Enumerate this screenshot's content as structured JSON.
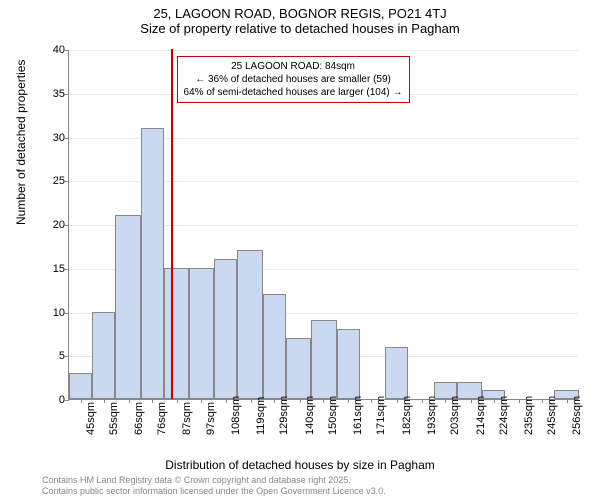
{
  "title_main": "25, LAGOON ROAD, BOGNOR REGIS, PO21 4TJ",
  "title_sub": "Size of property relative to detached houses in Pagham",
  "y_label": "Number of detached properties",
  "x_label": "Distribution of detached houses by size in Pagham",
  "chart": {
    "type": "histogram",
    "ylim": [
      0,
      40
    ],
    "ytick_step": 5,
    "bar_color": "#cbd9f0",
    "bar_border_color": "#888888",
    "grid_color": "#e8e8e8",
    "background_color": "#ffffff",
    "reference_line_color": "#cc0000",
    "reference_x": 84,
    "x_min": 40,
    "x_max": 261,
    "x_ticks": [
      45,
      55,
      66,
      76,
      87,
      97,
      108,
      119,
      129,
      140,
      150,
      161,
      171,
      182,
      193,
      203,
      214,
      224,
      235,
      245,
      256
    ],
    "bars": [
      {
        "x_start": 40,
        "x_end": 50,
        "value": 3
      },
      {
        "x_start": 50,
        "x_end": 60,
        "value": 10
      },
      {
        "x_start": 60,
        "x_end": 71,
        "value": 21
      },
      {
        "x_start": 71,
        "x_end": 81,
        "value": 31
      },
      {
        "x_start": 81,
        "x_end": 92,
        "value": 15
      },
      {
        "x_start": 92,
        "x_end": 103,
        "value": 15
      },
      {
        "x_start": 103,
        "x_end": 113,
        "value": 16
      },
      {
        "x_start": 113,
        "x_end": 124,
        "value": 17
      },
      {
        "x_start": 124,
        "x_end": 134,
        "value": 12
      },
      {
        "x_start": 134,
        "x_end": 145,
        "value": 7
      },
      {
        "x_start": 145,
        "x_end": 156,
        "value": 9
      },
      {
        "x_start": 156,
        "x_end": 166,
        "value": 8
      },
      {
        "x_start": 166,
        "x_end": 177,
        "value": 0
      },
      {
        "x_start": 177,
        "x_end": 187,
        "value": 6
      },
      {
        "x_start": 187,
        "x_end": 198,
        "value": 0
      },
      {
        "x_start": 198,
        "x_end": 208,
        "value": 2
      },
      {
        "x_start": 208,
        "x_end": 219,
        "value": 2
      },
      {
        "x_start": 219,
        "x_end": 229,
        "value": 1
      },
      {
        "x_start": 229,
        "x_end": 240,
        "value": 0
      },
      {
        "x_start": 240,
        "x_end": 250,
        "value": 0
      },
      {
        "x_start": 250,
        "x_end": 261,
        "value": 1
      }
    ]
  },
  "annotation": {
    "line1": "25 LAGOON ROAD: 84sqm",
    "line2": "← 36% of detached houses are smaller (59)",
    "line3": "64% of semi-detached houses are larger (104) →"
  },
  "attribution": {
    "line1": "Contains HM Land Registry data © Crown copyright and database right 2025.",
    "line2": "Contains public sector information licensed under the Open Government Licence v3.0."
  }
}
